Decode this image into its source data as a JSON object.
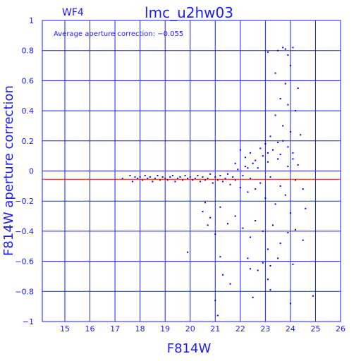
{
  "chart_data": {
    "type": "scatter",
    "title": "lmc_u2hw03",
    "chip_label": "WF4",
    "annotation": "Average aperture correction: −0.055",
    "xlabel": "F814W",
    "ylabel": "F814W aperture correction",
    "xlim": [
      14.1,
      26.0
    ],
    "ylim": [
      -1.0,
      1.0
    ],
    "x_ticks": [
      "15",
      "16",
      "17",
      "18",
      "19",
      "20",
      "21",
      "22",
      "23",
      "24",
      "25",
      "26"
    ],
    "x_tick_values": [
      15,
      16,
      17,
      18,
      19,
      20,
      21,
      22,
      23,
      24,
      25,
      26
    ],
    "y_ticks": [
      "1",
      "0.8",
      "0.6",
      "0.4",
      "0.2",
      "0",
      "−0.2",
      "−0.4",
      "−0.6",
      "−0.8",
      "−1"
    ],
    "y_tick_values": [
      1,
      0.8,
      0.6,
      0.4,
      0.2,
      0,
      -0.2,
      -0.4,
      -0.6,
      -0.8,
      -1
    ],
    "grid": true,
    "reference_line": {
      "y": -0.055,
      "color": "#ff0000"
    },
    "point_color": "#0000ee",
    "axis_color": "#1a1aff",
    "points": [
      [
        17.3,
        -0.05
      ],
      [
        17.6,
        -0.03
      ],
      [
        17.7,
        -0.07
      ],
      [
        17.8,
        -0.04
      ],
      [
        17.9,
        -0.05
      ],
      [
        18.0,
        -0.04
      ],
      [
        18.1,
        -0.06
      ],
      [
        18.2,
        -0.03
      ],
      [
        18.3,
        -0.05
      ],
      [
        18.4,
        -0.04
      ],
      [
        18.5,
        -0.07
      ],
      [
        18.6,
        -0.05
      ],
      [
        18.7,
        -0.03
      ],
      [
        18.8,
        -0.06
      ],
      [
        18.9,
        -0.04
      ],
      [
        19.0,
        -0.05
      ],
      [
        19.1,
        -0.06
      ],
      [
        19.2,
        -0.04
      ],
      [
        19.3,
        -0.03
      ],
      [
        19.4,
        -0.07
      ],
      [
        19.5,
        -0.05
      ],
      [
        19.6,
        -0.04
      ],
      [
        19.7,
        -0.06
      ],
      [
        19.8,
        -0.03
      ],
      [
        19.9,
        -0.05
      ],
      [
        20.0,
        -0.04
      ],
      [
        20.1,
        -0.06
      ],
      [
        20.2,
        -0.05
      ],
      [
        20.3,
        -0.03
      ],
      [
        20.4,
        -0.07
      ],
      [
        20.5,
        -0.04
      ],
      [
        20.6,
        -0.06
      ],
      [
        20.7,
        -0.05
      ],
      [
        20.8,
        -0.02
      ],
      [
        20.9,
        -0.08
      ],
      [
        21.0,
        -0.04
      ],
      [
        21.1,
        -0.06
      ],
      [
        21.2,
        -0.03
      ],
      [
        21.3,
        -0.07
      ],
      [
        21.4,
        -0.05
      ],
      [
        21.5,
        -0.02
      ],
      [
        21.6,
        -0.09
      ],
      [
        21.7,
        -0.04
      ],
      [
        21.8,
        -0.06
      ],
      [
        21.9,
        0.01
      ],
      [
        22.0,
        -0.11
      ],
      [
        22.1,
        -0.03
      ],
      [
        22.2,
        0.03
      ],
      [
        22.3,
        -0.14
      ],
      [
        22.4,
        -0.05
      ],
      [
        22.5,
        0.05
      ],
      [
        22.6,
        -0.12
      ],
      [
        22.7,
        0.02
      ],
      [
        22.8,
        -0.08
      ],
      [
        22.9,
        0.1
      ],
      [
        23.0,
        -0.18
      ],
      [
        23.1,
        0.06
      ],
      [
        23.2,
        -0.04
      ],
      [
        23.3,
        0.14
      ],
      [
        23.4,
        -0.22
      ],
      [
        23.5,
        0.08
      ],
      [
        23.6,
        -0.1
      ],
      [
        23.7,
        0.2
      ],
      [
        23.8,
        -0.16
      ],
      [
        23.9,
        0.03
      ],
      [
        24.0,
        -0.28
      ],
      [
        24.1,
        0.12
      ],
      [
        24.2,
        -0.06
      ],
      [
        24.3,
        0.04
      ],
      [
        24.5,
        -0.12
      ],
      [
        24.6,
        -0.25
      ],
      [
        20.6,
        -0.21
      ],
      [
        20.5,
        -0.27
      ],
      [
        20.7,
        -0.36
      ],
      [
        20.8,
        -0.31
      ],
      [
        21.0,
        -0.42
      ],
      [
        21.2,
        -0.24
      ],
      [
        21.5,
        -0.35
      ],
      [
        21.8,
        -0.3
      ],
      [
        22.1,
        -0.38
      ],
      [
        22.4,
        -0.44
      ],
      [
        22.6,
        -0.33
      ],
      [
        22.9,
        -0.4
      ],
      [
        23.1,
        -0.52
      ],
      [
        23.3,
        -0.36
      ],
      [
        23.6,
        -0.48
      ],
      [
        23.9,
        -0.41
      ],
      [
        24.2,
        -0.39
      ],
      [
        24.5,
        -0.46
      ],
      [
        19.9,
        -0.54
      ],
      [
        21.2,
        -0.57
      ],
      [
        22.3,
        -0.58
      ],
      [
        22.9,
        -0.61
      ],
      [
        23.2,
        -0.63
      ],
      [
        22.4,
        -0.65
      ],
      [
        21.3,
        -0.69
      ],
      [
        22.7,
        -0.66
      ],
      [
        23.1,
        -0.72
      ],
      [
        23.5,
        -0.58
      ],
      [
        24.1,
        -0.62
      ],
      [
        21.6,
        -0.75
      ],
      [
        22.5,
        -0.84
      ],
      [
        23.2,
        -0.79
      ],
      [
        24.0,
        -0.88
      ],
      [
        21.0,
        -0.86
      ],
      [
        21.1,
        -0.96
      ],
      [
        24.9,
        -0.83
      ],
      [
        23.1,
        0.79
      ],
      [
        23.5,
        0.8
      ],
      [
        23.7,
        0.82
      ],
      [
        23.8,
        0.81
      ],
      [
        24.1,
        0.82
      ],
      [
        23.9,
        0.77
      ],
      [
        24.0,
        0.7
      ],
      [
        23.4,
        0.65
      ],
      [
        23.8,
        0.58
      ],
      [
        24.3,
        0.55
      ],
      [
        23.6,
        0.48
      ],
      [
        23.9,
        0.44
      ],
      [
        24.2,
        0.4
      ],
      [
        23.4,
        0.37
      ],
      [
        23.7,
        0.3
      ],
      [
        24.0,
        0.26
      ],
      [
        23.2,
        0.23
      ],
      [
        23.5,
        0.19
      ],
      [
        23.9,
        0.16
      ],
      [
        24.4,
        0.24
      ],
      [
        23.1,
        0.12
      ],
      [
        23.6,
        0.11
      ],
      [
        24.1,
        0.08
      ],
      [
        22.0,
        0.14
      ],
      [
        22.2,
        0.09
      ],
      [
        22.4,
        0.12
      ],
      [
        22.6,
        0.07
      ],
      [
        22.8,
        0.15
      ],
      [
        23.0,
        0.18
      ],
      [
        21.8,
        0.05
      ],
      [
        22.3,
        0.02
      ]
    ]
  }
}
